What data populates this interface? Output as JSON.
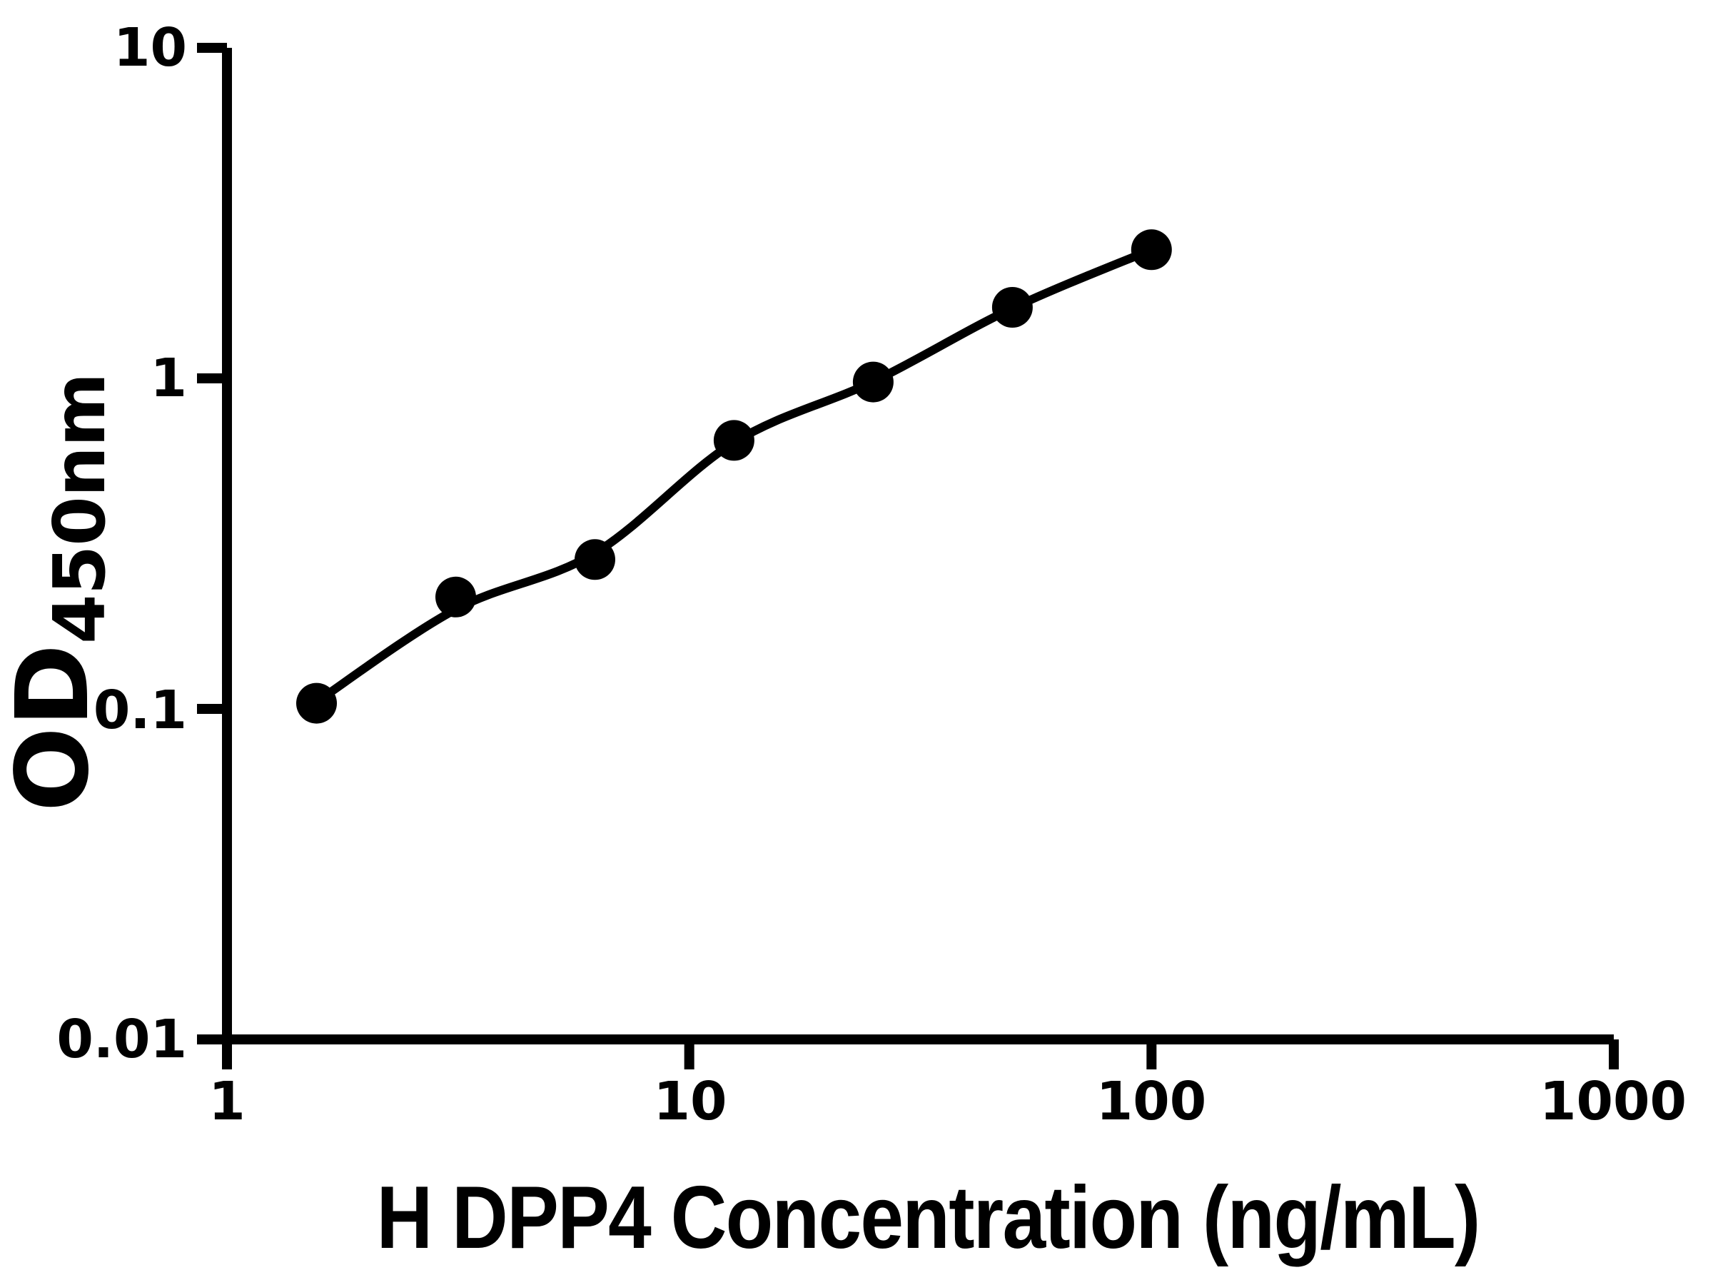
{
  "chart_data": {
    "type": "scatter",
    "title": "",
    "xlabel": "H DPP4 Concentration (ng/mL)",
    "ylabel_main": "OD",
    "ylabel_sub": "450nm",
    "x_scale": "log",
    "y_scale": "log",
    "xlim": [
      1,
      1000
    ],
    "ylim": [
      0.01,
      10
    ],
    "grid": false,
    "legend": "none",
    "x_ticks": [
      {
        "value": 1,
        "label": "1"
      },
      {
        "value": 10,
        "label": "10"
      },
      {
        "value": 100,
        "label": "100"
      },
      {
        "value": 1000,
        "label": "1000"
      }
    ],
    "y_ticks": [
      {
        "value": 10,
        "label": "10"
      },
      {
        "value": 1,
        "label": "1"
      },
      {
        "value": 0.1,
        "label": "0.1"
      },
      {
        "value": 0.01,
        "label": "0.01"
      }
    ],
    "series": [
      {
        "marker_color": "#000000",
        "line_color": "#000000",
        "points": [
          {
            "x": 1.5625,
            "y": 0.104
          },
          {
            "x": 3.125,
            "y": 0.218
          },
          {
            "x": 6.25,
            "y": 0.283
          },
          {
            "x": 12.5,
            "y": 0.649
          },
          {
            "x": 25,
            "y": 0.975
          },
          {
            "x": 50,
            "y": 1.64
          },
          {
            "x": 100,
            "y": 2.45
          }
        ],
        "fit_curve": [
          {
            "x": 1.5625,
            "y": 0.105
          },
          {
            "x": 3.125,
            "y": 0.2
          },
          {
            "x": 6.25,
            "y": 0.296
          },
          {
            "x": 12.5,
            "y": 0.64
          },
          {
            "x": 25,
            "y": 0.978
          },
          {
            "x": 50,
            "y": 1.63
          },
          {
            "x": 100,
            "y": 2.45
          }
        ]
      }
    ]
  }
}
